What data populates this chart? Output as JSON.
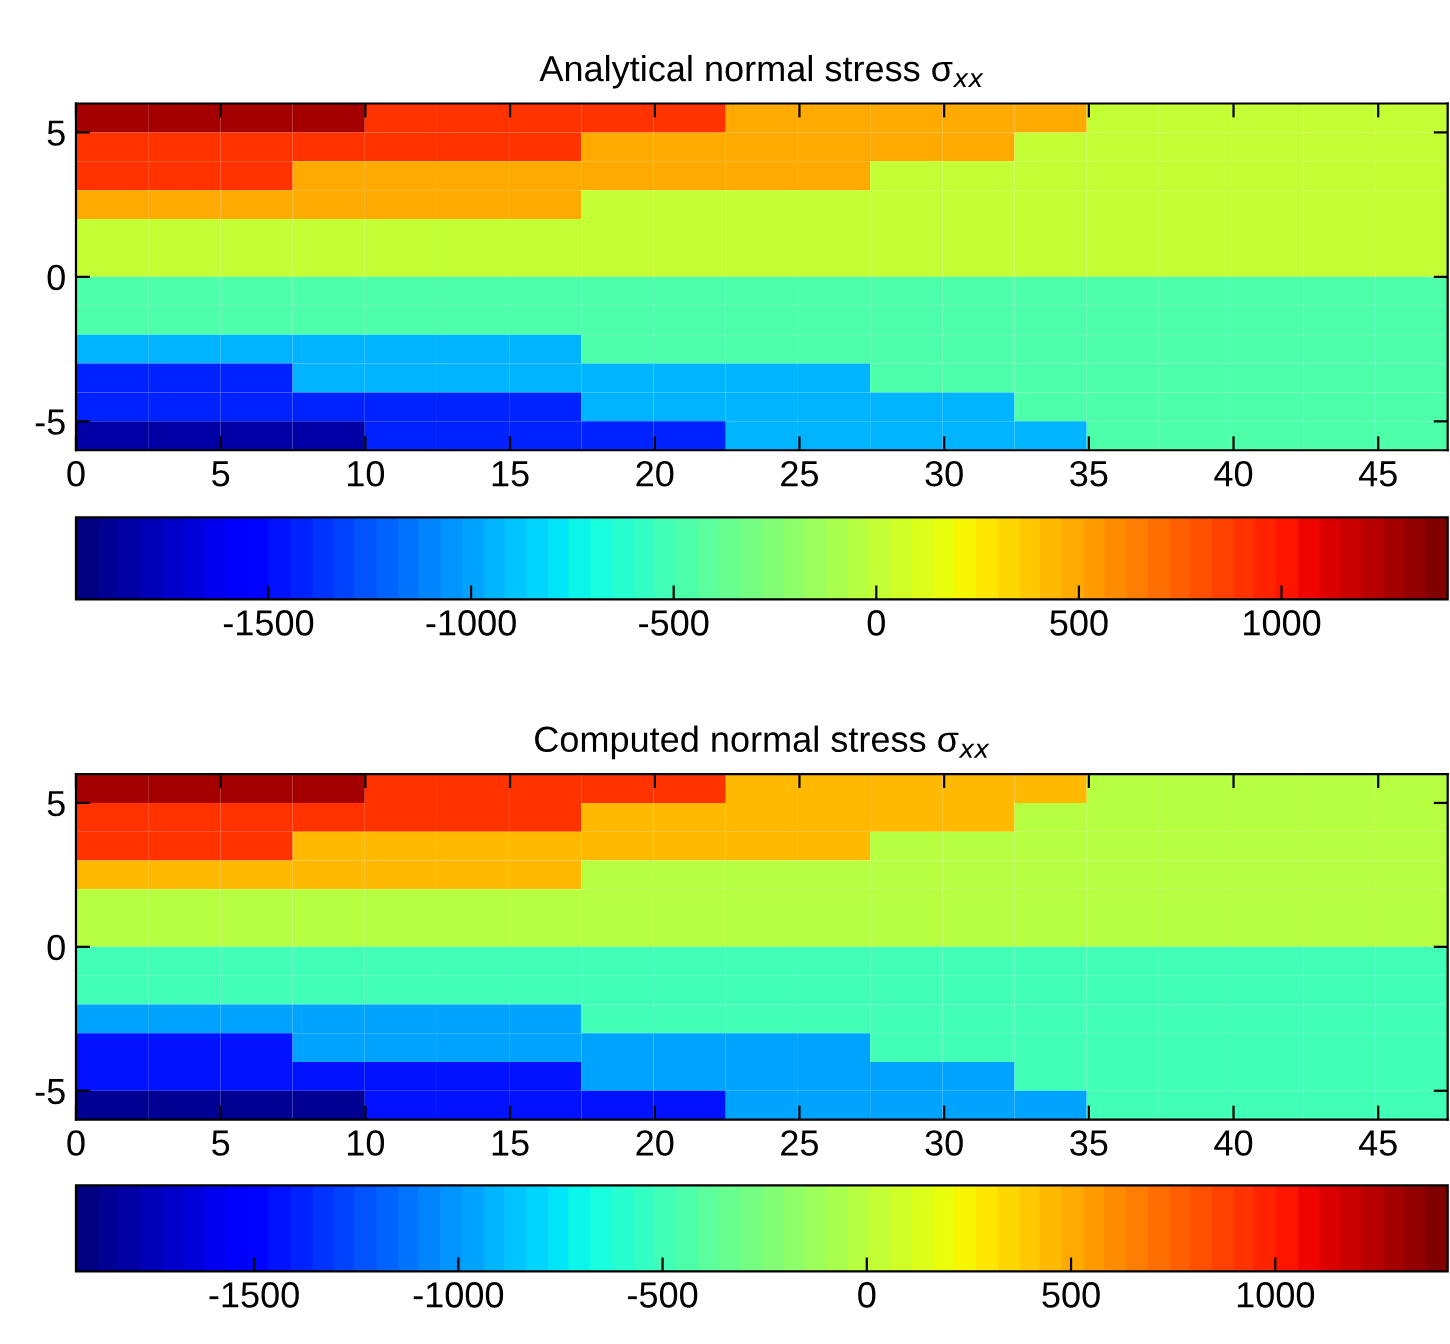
{
  "chart_data": [
    {
      "type": "heatmap",
      "title": "Analytical normal stress σ$_{xx}$",
      "xlim": [
        0,
        47.4
      ],
      "ylim": [
        -6,
        6
      ],
      "xticks": [
        0,
        5,
        10,
        15,
        20,
        25,
        30,
        35,
        40,
        45
      ],
      "yticks": [
        -5,
        0,
        5
      ],
      "clim": [
        -1975,
        1410
      ],
      "cticks": [
        -1500,
        -1000,
        -500,
        0,
        500,
        1000
      ],
      "cells": [
        [
          1300,
          1300,
          1300,
          1300,
          920,
          920,
          920,
          920,
          920,
          460,
          460,
          460,
          460,
          460,
          0,
          0,
          0,
          0,
          0
        ],
        [
          920,
          920,
          920,
          920,
          920,
          920,
          920,
          460,
          460,
          460,
          460,
          460,
          460,
          0,
          0,
          0,
          0,
          0,
          0
        ],
        [
          920,
          920,
          920,
          460,
          460,
          460,
          460,
          460,
          460,
          460,
          460,
          0,
          0,
          0,
          0,
          0,
          0,
          0,
          0
        ],
        [
          460,
          460,
          460,
          460,
          460,
          460,
          460,
          0,
          0,
          0,
          0,
          0,
          0,
          0,
          0,
          0,
          0,
          0,
          0
        ],
        [
          0,
          0,
          0,
          0,
          0,
          0,
          0,
          0,
          0,
          0,
          0,
          0,
          0,
          0,
          0,
          0,
          0,
          0,
          0
        ],
        [
          0,
          0,
          0,
          0,
          0,
          0,
          0,
          0,
          0,
          0,
          0,
          0,
          0,
          0,
          0,
          0,
          0,
          0,
          0
        ],
        [
          -470,
          -470,
          -470,
          -470,
          -470,
          -470,
          -470,
          -470,
          -470,
          -470,
          -470,
          -470,
          -470,
          -470,
          -470,
          -470,
          -470,
          -470,
          -470
        ],
        [
          -470,
          -470,
          -470,
          -470,
          -470,
          -470,
          -470,
          -470,
          -470,
          -470,
          -470,
          -470,
          -470,
          -470,
          -470,
          -470,
          -470,
          -470,
          -470
        ],
        [
          -940,
          -940,
          -940,
          -940,
          -940,
          -940,
          -940,
          -470,
          -470,
          -470,
          -470,
          -470,
          -470,
          -470,
          -470,
          -470,
          -470,
          -470,
          -470
        ],
        [
          -1420,
          -1420,
          -1420,
          -940,
          -940,
          -940,
          -940,
          -940,
          -940,
          -940,
          -940,
          -470,
          -470,
          -470,
          -470,
          -470,
          -470,
          -470,
          -470
        ],
        [
          -1420,
          -1420,
          -1420,
          -1420,
          -1420,
          -1420,
          -1420,
          -940,
          -940,
          -940,
          -940,
          -940,
          -940,
          -470,
          -470,
          -470,
          -470,
          -470,
          -470
        ],
        [
          -1850,
          -1850,
          -1850,
          -1850,
          -1420,
          -1420,
          -1420,
          -1420,
          -1420,
          -940,
          -940,
          -940,
          -940,
          -940,
          -470,
          -470,
          -470,
          -470,
          -470
        ]
      ]
    },
    {
      "type": "heatmap",
      "title": "Computed normal stress σ$_{xx}$",
      "xlim": [
        0,
        47.4
      ],
      "ylim": [
        -6,
        6
      ],
      "xticks": [
        0,
        5,
        10,
        15,
        20,
        25,
        30,
        35,
        40,
        45
      ],
      "yticks": [
        -5,
        0,
        5
      ],
      "clim": [
        -1936,
        1422
      ],
      "cticks": [
        -1500,
        -1000,
        -500,
        0,
        500,
        1000
      ],
      "cells": [
        [
          1300,
          1300,
          1300,
          1300,
          920,
          920,
          920,
          920,
          920,
          460,
          460,
          460,
          460,
          460,
          0,
          0,
          0,
          0,
          0
        ],
        [
          920,
          920,
          920,
          920,
          920,
          920,
          920,
          460,
          460,
          460,
          460,
          460,
          460,
          0,
          0,
          0,
          0,
          0,
          0
        ],
        [
          920,
          920,
          920,
          460,
          460,
          460,
          460,
          460,
          460,
          460,
          460,
          0,
          0,
          0,
          0,
          0,
          0,
          0,
          0
        ],
        [
          460,
          460,
          460,
          460,
          460,
          460,
          460,
          0,
          0,
          0,
          0,
          0,
          0,
          0,
          0,
          0,
          0,
          0,
          0
        ],
        [
          0,
          0,
          0,
          0,
          0,
          0,
          0,
          0,
          0,
          0,
          0,
          0,
          0,
          0,
          0,
          0,
          0,
          0,
          0
        ],
        [
          0,
          0,
          0,
          0,
          0,
          0,
          0,
          0,
          0,
          0,
          0,
          0,
          0,
          0,
          0,
          0,
          0,
          0,
          0
        ],
        [
          -470,
          -470,
          -470,
          -470,
          -470,
          -470,
          -470,
          -470,
          -470,
          -470,
          -470,
          -470,
          -470,
          -470,
          -470,
          -470,
          -470,
          -470,
          -470
        ],
        [
          -470,
          -470,
          -470,
          -470,
          -470,
          -470,
          -470,
          -470,
          -470,
          -470,
          -470,
          -470,
          -470,
          -470,
          -470,
          -470,
          -470,
          -470,
          -470
        ],
        [
          -940,
          -940,
          -940,
          -940,
          -940,
          -940,
          -940,
          -470,
          -470,
          -470,
          -470,
          -470,
          -470,
          -470,
          -470,
          -470,
          -470,
          -470,
          -470
        ],
        [
          -1420,
          -1420,
          -1420,
          -940,
          -940,
          -940,
          -940,
          -940,
          -940,
          -940,
          -940,
          -470,
          -470,
          -470,
          -470,
          -470,
          -470,
          -470,
          -470
        ],
        [
          -1420,
          -1420,
          -1420,
          -1420,
          -1420,
          -1420,
          -1420,
          -940,
          -940,
          -940,
          -940,
          -940,
          -940,
          -470,
          -470,
          -470,
          -470,
          -470,
          -470
        ],
        [
          -1850,
          -1850,
          -1850,
          -1850,
          -1420,
          -1420,
          -1420,
          -1420,
          -1420,
          -940,
          -940,
          -940,
          -940,
          -940,
          -470,
          -470,
          -470,
          -470,
          -470
        ]
      ]
    }
  ]
}
